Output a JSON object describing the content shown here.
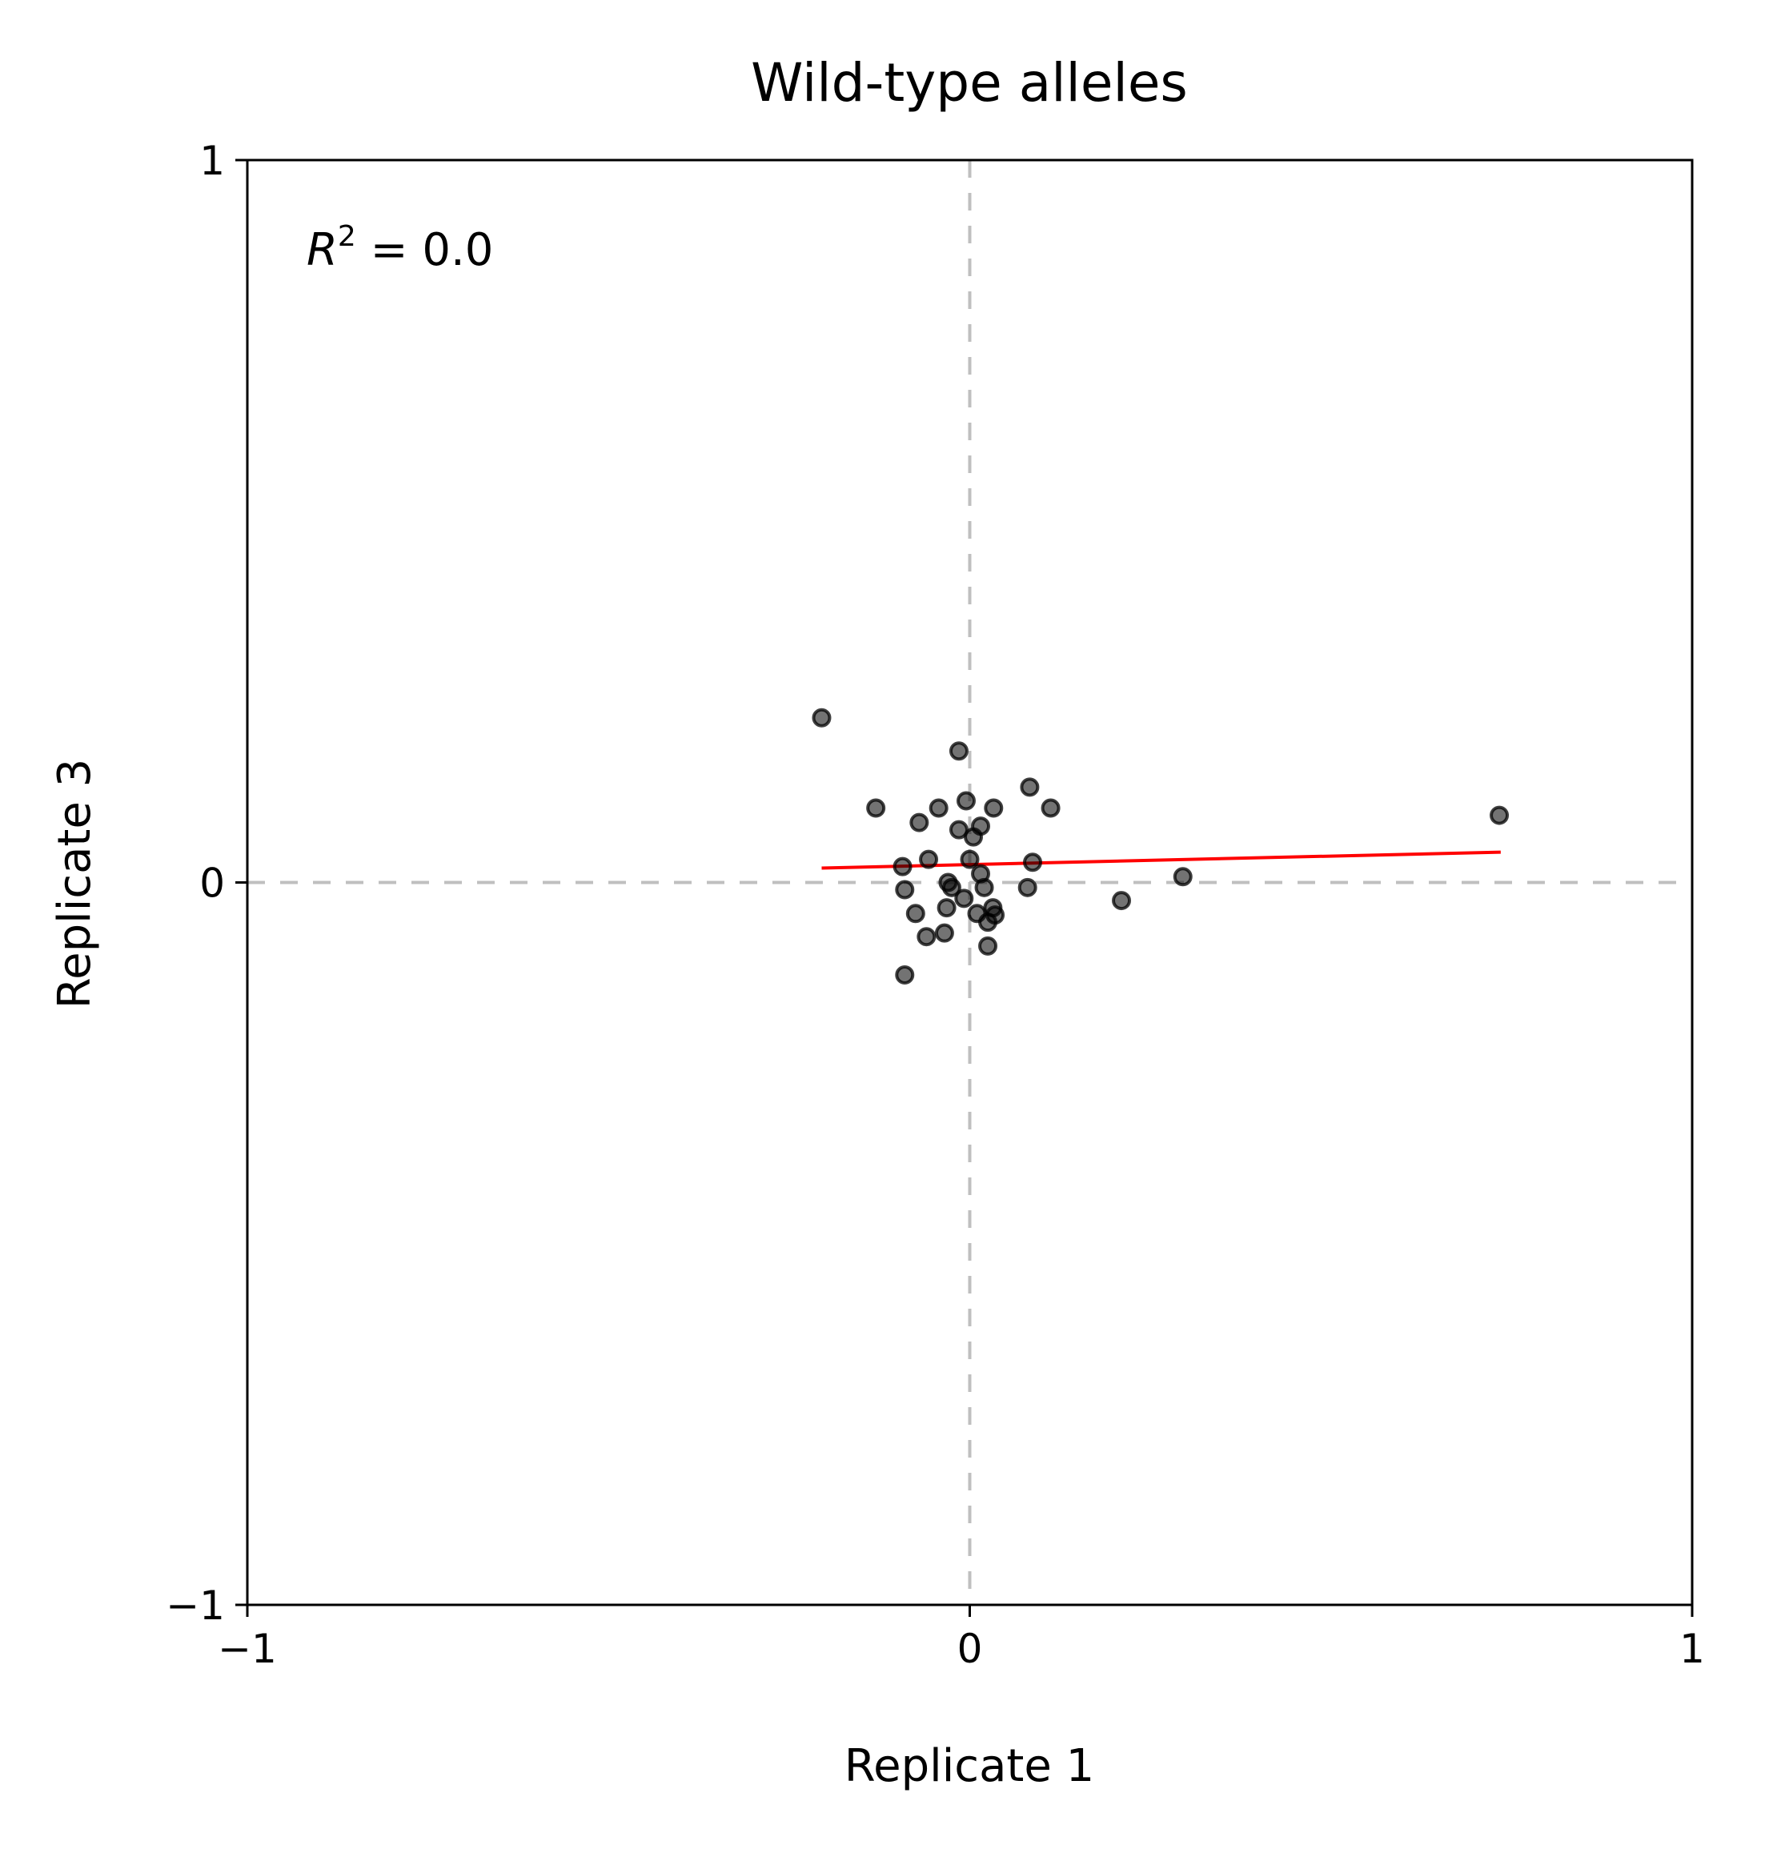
{
  "chart_data": {
    "type": "scatter",
    "title": "Wild-type alleles",
    "xlabel": "Replicate 1",
    "ylabel": "Replicate 3",
    "xlim": [
      -1,
      1
    ],
    "ylim": [
      -1,
      1
    ],
    "xticks": [
      {
        "value": -1,
        "label": "−1"
      },
      {
        "value": 0,
        "label": "0"
      },
      {
        "value": 1,
        "label": "1"
      }
    ],
    "yticks": [
      {
        "value": -1,
        "label": "−1"
      },
      {
        "value": 0,
        "label": "0"
      },
      {
        "value": 1,
        "label": "1"
      }
    ],
    "annotation": {
      "prefix": "R",
      "exponent": "2",
      "suffix": " = 0.0"
    },
    "reference_lines": {
      "x": 0,
      "y": 0,
      "color": "#bfbfbf",
      "style": "dashed"
    },
    "point_color": "#000000",
    "point_opacity": 0.55,
    "fit_line": {
      "color": "#ff0000",
      "points": [
        [
          -0.205,
          0.02
        ],
        [
          0.735,
          0.042
        ]
      ]
    },
    "points": [
      {
        "x": -0.205,
        "y": 0.228
      },
      {
        "x": -0.015,
        "y": 0.182
      },
      {
        "x": 0.083,
        "y": 0.132
      },
      {
        "x": 0.112,
        "y": 0.103
      },
      {
        "x": -0.13,
        "y": 0.103
      },
      {
        "x": -0.043,
        "y": 0.103
      },
      {
        "x": -0.07,
        "y": 0.083
      },
      {
        "x": -0.005,
        "y": 0.113
      },
      {
        "x": 0.033,
        "y": 0.103
      },
      {
        "x": 0.015,
        "y": 0.078
      },
      {
        "x": -0.015,
        "y": 0.073
      },
      {
        "x": 0.005,
        "y": 0.063
      },
      {
        "x": -0.057,
        "y": 0.032
      },
      {
        "x": 0.0,
        "y": 0.032
      },
      {
        "x": 0.087,
        "y": 0.028
      },
      {
        "x": -0.093,
        "y": 0.022
      },
      {
        "x": 0.015,
        "y": 0.012
      },
      {
        "x": -0.03,
        "y": 0.0
      },
      {
        "x": -0.025,
        "y": -0.007
      },
      {
        "x": 0.02,
        "y": -0.007
      },
      {
        "x": 0.08,
        "y": -0.007
      },
      {
        "x": -0.09,
        "y": -0.01
      },
      {
        "x": 0.295,
        "y": 0.008
      },
      {
        "x": -0.008,
        "y": -0.022
      },
      {
        "x": 0.21,
        "y": -0.025
      },
      {
        "x": 0.032,
        "y": -0.035
      },
      {
        "x": -0.032,
        "y": -0.035
      },
      {
        "x": -0.075,
        "y": -0.043
      },
      {
        "x": 0.01,
        "y": -0.043
      },
      {
        "x": 0.035,
        "y": -0.045
      },
      {
        "x": 0.025,
        "y": -0.055
      },
      {
        "x": -0.035,
        "y": -0.07
      },
      {
        "x": -0.06,
        "y": -0.075
      },
      {
        "x": 0.025,
        "y": -0.088
      },
      {
        "x": -0.09,
        "y": -0.128
      },
      {
        "x": 0.733,
        "y": 0.093
      }
    ]
  }
}
